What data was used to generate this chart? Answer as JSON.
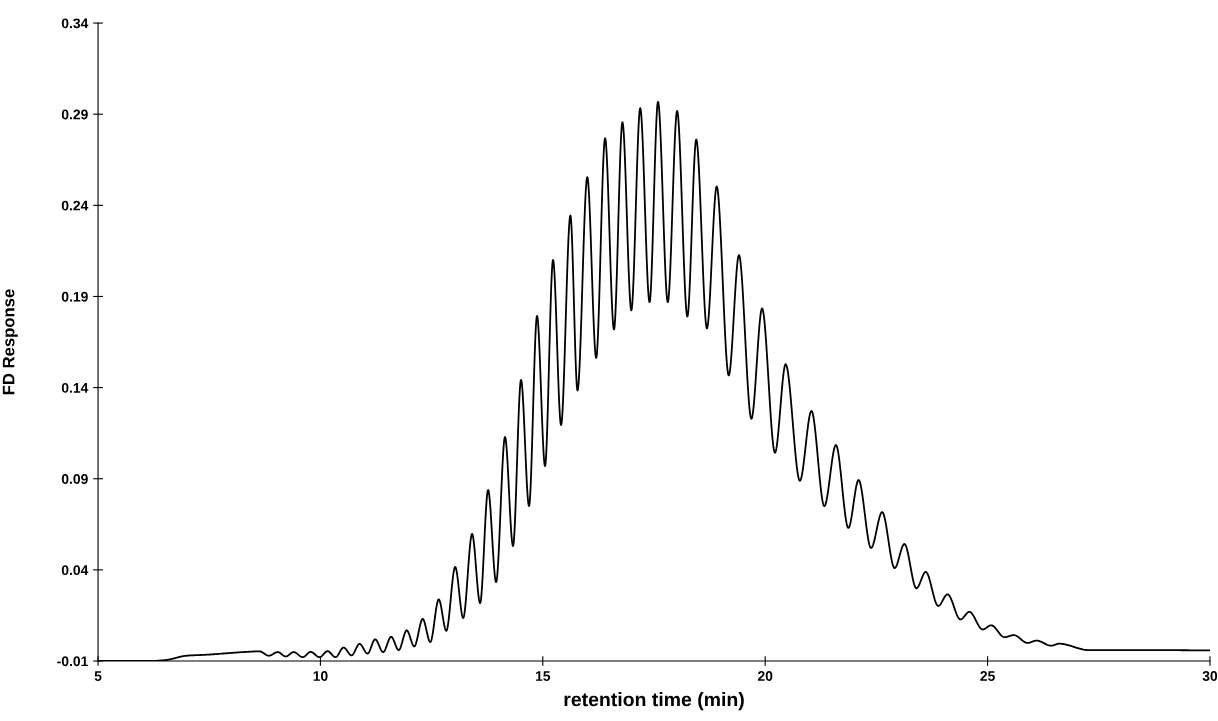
{
  "chart_data": {
    "type": "line",
    "xlabel": "retention time (min)",
    "ylabel": "FD Response",
    "x": [
      5,
      6.18,
      6.51,
      6.99,
      7.47,
      8.27,
      8.63,
      8.84,
      9.04,
      9.22,
      9.4,
      9.6,
      9.78,
      9.98,
      10.16,
      10.34,
      10.52,
      10.7,
      10.88,
      11.06,
      11.23,
      11.41,
      11.59,
      11.76,
      11.94,
      12.11,
      12.3,
      12.47,
      12.66,
      12.83,
      13.03,
      13.21,
      13.41,
      13.59,
      13.77,
      13.95,
      14.15,
      14.33,
      14.51,
      14.69,
      14.87,
      15.05,
      15.23,
      15.41,
      15.62,
      15.78,
      16.0,
      16.2,
      16.4,
      16.6,
      16.79,
      16.99,
      17.19,
      17.4,
      17.59,
      17.81,
      18.02,
      18.25,
      18.45,
      18.69,
      18.91,
      19.18,
      19.41,
      19.69,
      19.93,
      20.22,
      20.46,
      20.78,
      21.04,
      21.33,
      21.59,
      21.87,
      22.1,
      22.38,
      22.63,
      22.91,
      23.13,
      23.4,
      23.61,
      23.89,
      24.1,
      24.39,
      24.59,
      24.89,
      25.08,
      25.38,
      25.59,
      25.9,
      26.1,
      26.43,
      26.61,
      27.27,
      28.65,
      30.0
    ],
    "series": [
      {
        "color": "#000000",
        "values": [
          -0.01,
          -0.01,
          -0.0095,
          -0.0071,
          -0.0065,
          -0.0051,
          -0.0047,
          -0.0071,
          -0.0051,
          -0.0075,
          -0.0051,
          -0.0079,
          -0.005,
          -0.0079,
          -0.0046,
          -0.0079,
          -0.0026,
          -0.0069,
          -0.0006,
          -0.0059,
          0.0019,
          -0.0051,
          0.0033,
          -0.004,
          0.0068,
          -0.002,
          0.0131,
          0.0004,
          0.0238,
          0.0066,
          0.0416,
          0.0136,
          0.0597,
          0.0218,
          0.0838,
          0.0333,
          0.1129,
          0.0531,
          0.1442,
          0.075,
          0.1793,
          0.097,
          0.21,
          0.1195,
          0.2344,
          0.1384,
          0.2555,
          0.1563,
          0.2768,
          0.1719,
          0.2856,
          0.1824,
          0.2933,
          0.1869,
          0.2968,
          0.1869,
          0.2918,
          0.179,
          0.2761,
          0.1725,
          0.2503,
          0.1467,
          0.2127,
          0.1229,
          0.1834,
          0.1043,
          0.1528,
          0.0889,
          0.1272,
          0.075,
          0.1085,
          0.063,
          0.0893,
          0.052,
          0.0717,
          0.041,
          0.0542,
          0.0299,
          0.0389,
          0.0202,
          0.0266,
          0.0128,
          0.017,
          0.0073,
          0.0096,
          0.0031,
          0.0042,
          -0.0001,
          0.0012,
          -0.0016,
          -0.0005,
          -0.004,
          -0.004,
          -0.0042
        ]
      }
    ],
    "xlim": [
      5,
      30
    ],
    "xticks": [
      5,
      10,
      15,
      20,
      25,
      30
    ],
    "ylim": [
      -0.01,
      0.34
    ],
    "yticks": [
      -0.01,
      0.04,
      0.09,
      0.14,
      0.19,
      0.24,
      0.29,
      0.34
    ],
    "grid": false,
    "marker": "none",
    "line_style": "solid"
  }
}
